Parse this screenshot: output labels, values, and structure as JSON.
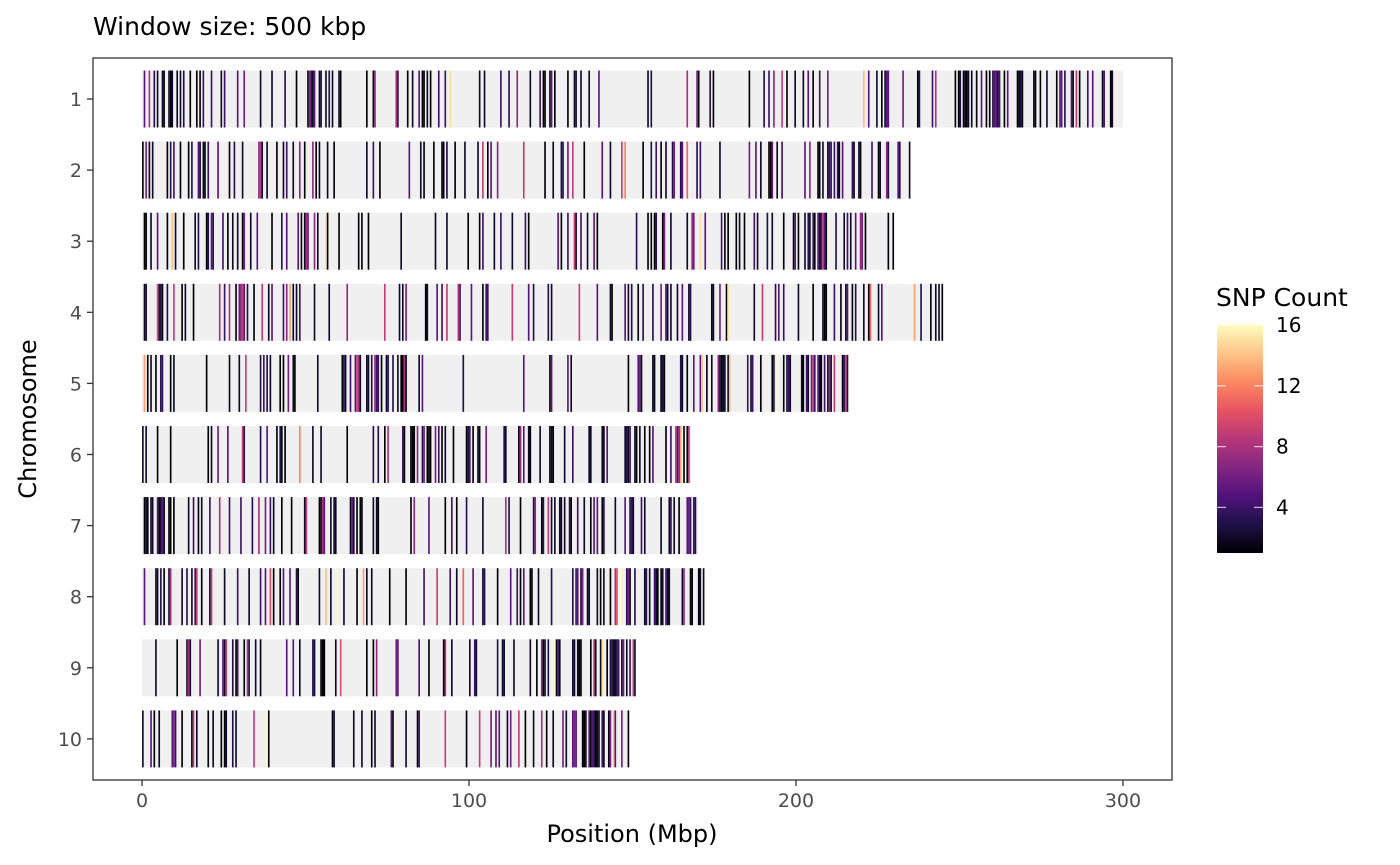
{
  "chart_data": {
    "type": "heatmap",
    "title": "Window size: 500 kbp",
    "xlabel": "Position (Mbp)",
    "ylabel": "Chromosome",
    "xlim": [
      -15,
      315
    ],
    "x_ticks": [
      0,
      100,
      200,
      300
    ],
    "x_tick_labels": [
      "0",
      "100",
      "200",
      "300"
    ],
    "chromosomes": [
      "1",
      "2",
      "3",
      "4",
      "5",
      "6",
      "7",
      "8",
      "9",
      "10"
    ],
    "window_size_mbp": 0.5,
    "chromosome_lengths_mbp": [
      300,
      235,
      230,
      245,
      216,
      168,
      170,
      172,
      151,
      149
    ],
    "background_color": "#f0f0f0",
    "empty_window_value": 0,
    "legend": {
      "title": "SNP Count",
      "position": "right",
      "range": [
        1,
        16
      ],
      "ticks": [
        4,
        8,
        12,
        16
      ],
      "tick_labels": [
        "4",
        "8",
        "12",
        "16"
      ],
      "palette": "magma",
      "colors": [
        "#000004",
        "#1d1147",
        "#51127c",
        "#822681",
        "#b73779",
        "#e75263",
        "#fc8961",
        "#fec488",
        "#fcfdbf"
      ]
    },
    "density_profile_note": "Per-chromosome SNP-window density, fraction of 500 kbp windows containing SNPs, by 10 Mbp segment",
    "density_profiles": {
      "1": [
        0.8,
        0.6,
        0.5,
        0.4,
        0.5,
        0.6,
        0.5,
        0.4,
        0.6,
        0.3,
        0.3,
        0.2,
        0.2,
        0.3,
        0.2,
        0.2,
        0.1,
        0.1,
        0.3,
        0.5,
        0.5,
        0.3,
        0.4,
        0.5,
        0.4,
        0.6,
        0.7,
        0.5,
        0.6,
        0.5
      ],
      "2": [
        0.9,
        0.8,
        0.7,
        0.6,
        0.5,
        0.3,
        0.3,
        0.2,
        0.2,
        0.3,
        0.3,
        0.2,
        0.2,
        0.2,
        0.3,
        0.5,
        0.6,
        0.6,
        0.4,
        0.5,
        0.7,
        0.6,
        0.4,
        0.3
      ],
      "3": [
        0.7,
        0.6,
        0.4,
        0.4,
        0.4,
        0.3,
        0.2,
        0.2,
        0.3,
        0.3,
        0.2,
        0.3,
        0.3,
        0.3,
        0.2,
        0.5,
        0.6,
        0.4,
        0.4,
        0.6,
        0.8,
        0.8,
        0.5
      ],
      "4": [
        0.5,
        0.4,
        0.3,
        0.5,
        0.5,
        0.4,
        0.3,
        0.3,
        0.3,
        0.3,
        0.3,
        0.3,
        0.4,
        0.3,
        0.4,
        0.4,
        0.5,
        0.4,
        0.3,
        0.5,
        0.6,
        0.4,
        0.3,
        0.5,
        0.7
      ],
      "5": [
        0.8,
        0.5,
        0.3,
        0.4,
        0.3,
        0.3,
        0.8,
        0.7,
        0.3,
        0.2,
        0.1,
        0.1,
        0.2,
        0.1,
        0.2,
        0.5,
        0.6,
        0.6,
        0.5,
        0.7,
        0.9,
        0.8
      ],
      "6": [
        0.2,
        0.3,
        0.4,
        0.3,
        0.2,
        0.2,
        0.2,
        0.3,
        0.8,
        0.6,
        0.5,
        0.4,
        0.6,
        0.5,
        0.7,
        0.8,
        0.7
      ],
      "7": [
        0.7,
        0.5,
        0.3,
        0.3,
        0.2,
        0.4,
        0.6,
        0.4,
        0.3,
        0.3,
        0.2,
        0.2,
        0.7,
        0.8,
        0.7,
        0.6,
        0.8
      ],
      "8": [
        0.5,
        0.3,
        0.3,
        0.3,
        0.3,
        0.3,
        0.3,
        0.3,
        0.3,
        0.2,
        0.3,
        0.5,
        0.4,
        0.7,
        0.6,
        0.6,
        0.8,
        0.9
      ],
      "9": [
        0.2,
        0.3,
        0.7,
        0.6,
        0.4,
        0.3,
        0.3,
        0.3,
        0.2,
        0.2,
        0.4,
        0.4,
        0.6,
        0.5,
        0.8,
        0.9
      ],
      "10": [
        0.7,
        0.5,
        0.3,
        0.3,
        0.2,
        0.2,
        0.4,
        0.4,
        0.5,
        0.3,
        0.3,
        0.3,
        0.5,
        0.8,
        0.9
      ]
    }
  }
}
